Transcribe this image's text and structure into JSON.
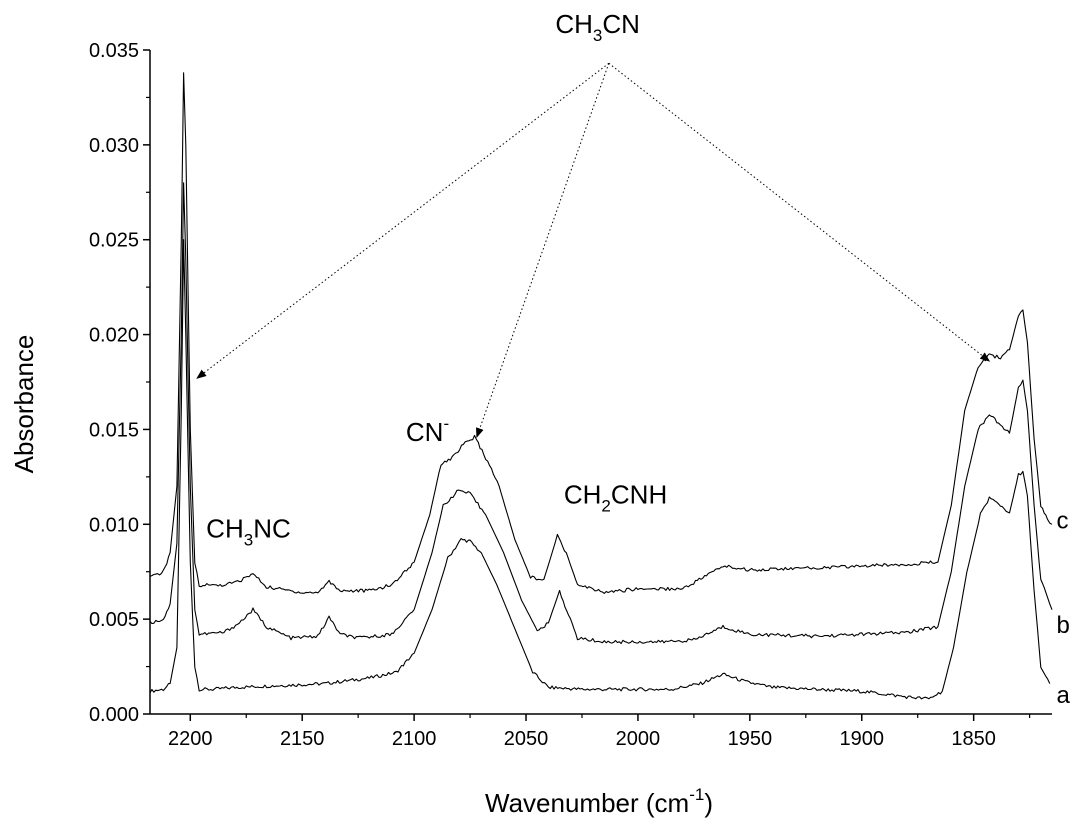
{
  "chart_data": {
    "type": "line",
    "xlabel": "Wavenumber (cm",
    "xlabel_sup": "-1",
    "xlabel_close": ")",
    "ylabel": "Absorbance",
    "xlim": [
      2218,
      1815
    ],
    "ylim": [
      0,
      0.035
    ],
    "x_ticks": [
      2200,
      2150,
      2100,
      2050,
      2000,
      1950,
      1900,
      1850
    ],
    "y_ticks": [
      "0.000",
      "0.005",
      "0.010",
      "0.015",
      "0.020",
      "0.025",
      "0.030",
      "0.035"
    ],
    "grid": false,
    "series": [
      {
        "name": "a",
        "points": [
          [
            2218,
            0.0012
          ],
          [
            2212,
            0.0013
          ],
          [
            2209,
            0.0016
          ],
          [
            2206,
            0.0035
          ],
          [
            2204,
            0.016
          ],
          [
            2203,
            0.025
          ],
          [
            2202,
            0.02
          ],
          [
            2200,
            0.008
          ],
          [
            2198,
            0.0025
          ],
          [
            2196,
            0.0013
          ],
          [
            2190,
            0.0013
          ],
          [
            2180,
            0.0014
          ],
          [
            2160,
            0.0015
          ],
          [
            2140,
            0.0016
          ],
          [
            2120,
            0.0019
          ],
          [
            2108,
            0.0022
          ],
          [
            2100,
            0.0032
          ],
          [
            2092,
            0.0055
          ],
          [
            2085,
            0.0082
          ],
          [
            2079,
            0.0092
          ],
          [
            2075,
            0.0091
          ],
          [
            2070,
            0.0085
          ],
          [
            2063,
            0.0068
          ],
          [
            2055,
            0.0045
          ],
          [
            2047,
            0.0022
          ],
          [
            2040,
            0.0014
          ],
          [
            2025,
            0.0013
          ],
          [
            2000,
            0.0013
          ],
          [
            1985,
            0.0013
          ],
          [
            1972,
            0.0016
          ],
          [
            1962,
            0.0021
          ],
          [
            1952,
            0.0017
          ],
          [
            1940,
            0.0014
          ],
          [
            1900,
            0.0012
          ],
          [
            1880,
            0.0009
          ],
          [
            1870,
            0.0008
          ],
          [
            1864,
            0.0012
          ],
          [
            1859,
            0.0035
          ],
          [
            1853,
            0.0075
          ],
          [
            1847,
            0.0105
          ],
          [
            1843,
            0.0114
          ],
          [
            1838,
            0.011
          ],
          [
            1834,
            0.0106
          ],
          [
            1830,
            0.0126
          ],
          [
            1828,
            0.0128
          ],
          [
            1826,
            0.0115
          ],
          [
            1823,
            0.0065
          ],
          [
            1820,
            0.0025
          ],
          [
            1818,
            0.002
          ],
          [
            1816,
            0.0016
          ]
        ]
      },
      {
        "name": "b",
        "points": [
          [
            2218,
            0.0048
          ],
          [
            2212,
            0.005
          ],
          [
            2209,
            0.0058
          ],
          [
            2206,
            0.009
          ],
          [
            2204,
            0.02
          ],
          [
            2203,
            0.028
          ],
          [
            2202,
            0.024
          ],
          [
            2200,
            0.012
          ],
          [
            2198,
            0.0055
          ],
          [
            2196,
            0.0042
          ],
          [
            2185,
            0.0043
          ],
          [
            2178,
            0.0048
          ],
          [
            2172,
            0.0055
          ],
          [
            2166,
            0.0046
          ],
          [
            2155,
            0.004
          ],
          [
            2143,
            0.0041
          ],
          [
            2138,
            0.0051
          ],
          [
            2133,
            0.0042
          ],
          [
            2125,
            0.004
          ],
          [
            2110,
            0.0042
          ],
          [
            2100,
            0.0055
          ],
          [
            2092,
            0.0085
          ],
          [
            2087,
            0.011
          ],
          [
            2080,
            0.0118
          ],
          [
            2075,
            0.0116
          ],
          [
            2068,
            0.0105
          ],
          [
            2060,
            0.0085
          ],
          [
            2052,
            0.006
          ],
          [
            2045,
            0.0044
          ],
          [
            2040,
            0.0048
          ],
          [
            2035,
            0.0065
          ],
          [
            2031,
            0.0052
          ],
          [
            2027,
            0.004
          ],
          [
            2015,
            0.0038
          ],
          [
            1990,
            0.0038
          ],
          [
            1975,
            0.0039
          ],
          [
            1962,
            0.0046
          ],
          [
            1950,
            0.0042
          ],
          [
            1920,
            0.0041
          ],
          [
            1880,
            0.0043
          ],
          [
            1866,
            0.0046
          ],
          [
            1860,
            0.0075
          ],
          [
            1854,
            0.012
          ],
          [
            1848,
            0.015
          ],
          [
            1843,
            0.0158
          ],
          [
            1838,
            0.0152
          ],
          [
            1834,
            0.0148
          ],
          [
            1830,
            0.0172
          ],
          [
            1828,
            0.0176
          ],
          [
            1826,
            0.016
          ],
          [
            1823,
            0.011
          ],
          [
            1820,
            0.007
          ],
          [
            1817,
            0.0062
          ],
          [
            1815,
            0.0055
          ]
        ]
      },
      {
        "name": "c",
        "points": [
          [
            2218,
            0.0072
          ],
          [
            2212,
            0.0075
          ],
          [
            2209,
            0.0085
          ],
          [
            2206,
            0.012
          ],
          [
            2204,
            0.025
          ],
          [
            2203,
            0.0338
          ],
          [
            2202,
            0.03
          ],
          [
            2200,
            0.015
          ],
          [
            2198,
            0.008
          ],
          [
            2196,
            0.0068
          ],
          [
            2185,
            0.0068
          ],
          [
            2178,
            0.007
          ],
          [
            2172,
            0.0074
          ],
          [
            2166,
            0.0067
          ],
          [
            2150,
            0.0064
          ],
          [
            2143,
            0.0064
          ],
          [
            2138,
            0.007
          ],
          [
            2133,
            0.0065
          ],
          [
            2120,
            0.0065
          ],
          [
            2110,
            0.0068
          ],
          [
            2100,
            0.008
          ],
          [
            2093,
            0.0105
          ],
          [
            2088,
            0.0132
          ],
          [
            2083,
            0.0135
          ],
          [
            2078,
            0.0142
          ],
          [
            2073,
            0.0146
          ],
          [
            2068,
            0.0135
          ],
          [
            2062,
            0.012
          ],
          [
            2055,
            0.0092
          ],
          [
            2048,
            0.0072
          ],
          [
            2042,
            0.0071
          ],
          [
            2036,
            0.0094
          ],
          [
            2032,
            0.0085
          ],
          [
            2027,
            0.0068
          ],
          [
            2015,
            0.0064
          ],
          [
            2000,
            0.0066
          ],
          [
            1980,
            0.0066
          ],
          [
            1962,
            0.0078
          ],
          [
            1950,
            0.0076
          ],
          [
            1920,
            0.0077
          ],
          [
            1880,
            0.0079
          ],
          [
            1866,
            0.008
          ],
          [
            1860,
            0.011
          ],
          [
            1854,
            0.016
          ],
          [
            1848,
            0.0183
          ],
          [
            1843,
            0.0189
          ],
          [
            1838,
            0.0188
          ],
          [
            1834,
            0.0192
          ],
          [
            1830,
            0.021
          ],
          [
            1828,
            0.0213
          ],
          [
            1826,
            0.0196
          ],
          [
            1823,
            0.0145
          ],
          [
            1820,
            0.011
          ],
          [
            1817,
            0.0103
          ],
          [
            1815,
            0.01
          ]
        ]
      }
    ],
    "series_labels": [
      {
        "text": "a",
        "x": 1813,
        "y": 0.001
      },
      {
        "text": "b",
        "x": 1813,
        "y": 0.0047
      },
      {
        "text": "c",
        "x": 1813,
        "y": 0.0102
      }
    ],
    "annotations": [
      {
        "name": "ch3nc",
        "parts": [
          [
            "CH",
            0
          ],
          [
            "3",
            -1
          ],
          [
            "NC",
            0
          ]
        ],
        "x": 2174,
        "y": 0.0093
      },
      {
        "name": "cn-minus",
        "parts": [
          [
            "CN",
            0
          ],
          [
            "-",
            1
          ]
        ],
        "x": 2094,
        "y": 0.0144
      },
      {
        "name": "ch2cnh",
        "parts": [
          [
            "CH",
            0
          ],
          [
            "2",
            -1
          ],
          [
            "CNH",
            0
          ]
        ],
        "x": 2010,
        "y": 0.0111
      },
      {
        "name": "ch3cn",
        "parts": [
          [
            "CH",
            0
          ],
          [
            "3",
            -1
          ],
          [
            "CN",
            0
          ]
        ],
        "x": 2018,
        "y": 0.0359
      }
    ],
    "arrows": {
      "origin": {
        "x": 2013,
        "y": 0.0343
      },
      "targets": [
        {
          "x": 2197,
          "y": 0.0177
        },
        {
          "x": 2072,
          "y": 0.0146
        },
        {
          "x": 1843,
          "y": 0.0186
        }
      ]
    }
  }
}
